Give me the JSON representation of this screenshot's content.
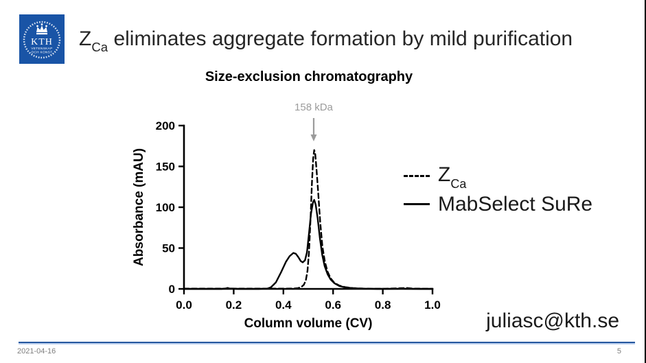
{
  "slide": {
    "title": {
      "z": "Z",
      "sub": "Ca",
      "rest": " eliminates aggregate formation by mild purification"
    },
    "email": "juliasc@kth.se",
    "footer_date": "2021-04-16",
    "footer_page": "5",
    "logo": {
      "text": "KTH",
      "subtext1": "VETENSKAP",
      "subtext2": "OCH KONST",
      "color": "#1954a6"
    }
  },
  "chart_data": {
    "type": "line",
    "title": "Size-exclusion chromatography",
    "xlabel": "Column volume (CV)",
    "ylabel": "Absorbance (mAU)",
    "xlim": [
      0.0,
      1.0
    ],
    "ylim": [
      0,
      200
    ],
    "xtick_values": [
      0.0,
      0.2,
      0.4,
      0.6,
      0.8,
      1.0
    ],
    "xtick_labels": [
      "0.0",
      "0.2",
      "0.4",
      "0.6",
      "0.8",
      "1.0"
    ],
    "ytick_values": [
      0,
      50,
      100,
      150,
      200
    ],
    "ytick_labels": [
      "0",
      "50",
      "100",
      "150",
      "200"
    ],
    "grid": false,
    "legend_position": "right",
    "annotation": {
      "text": "158 kDa",
      "x": 0.522,
      "arrow": true,
      "color": "#9b9b9b"
    },
    "legend": [
      {
        "label": "Z",
        "sub": "Ca",
        "style": "dashed"
      },
      {
        "label": "MabSelect SuRe",
        "sub": "",
        "style": "solid"
      }
    ],
    "series": [
      {
        "name": "Z_Ca",
        "style": "dashed",
        "color": "#000000",
        "points": [
          [
            0.0,
            0.3
          ],
          [
            0.1,
            0.3
          ],
          [
            0.2,
            0.3
          ],
          [
            0.3,
            0.3
          ],
          [
            0.4,
            0.3
          ],
          [
            0.44,
            0.5
          ],
          [
            0.46,
            1
          ],
          [
            0.473,
            2.5
          ],
          [
            0.482,
            5
          ],
          [
            0.49,
            10
          ],
          [
            0.497,
            22
          ],
          [
            0.503,
            45
          ],
          [
            0.509,
            85
          ],
          [
            0.515,
            130
          ],
          [
            0.52,
            160
          ],
          [
            0.524,
            170
          ],
          [
            0.528,
            166
          ],
          [
            0.533,
            148
          ],
          [
            0.54,
            118
          ],
          [
            0.548,
            82
          ],
          [
            0.557,
            52
          ],
          [
            0.567,
            33
          ],
          [
            0.578,
            21
          ],
          [
            0.59,
            13
          ],
          [
            0.605,
            7.5
          ],
          [
            0.625,
            4
          ],
          [
            0.65,
            2
          ],
          [
            0.68,
            1
          ],
          [
            0.72,
            0.4
          ],
          [
            0.8,
            0.2
          ],
          [
            0.87,
            0.8
          ],
          [
            0.895,
            1.2
          ],
          [
            0.92,
            0.4
          ],
          [
            1.0,
            0.2
          ]
        ]
      },
      {
        "name": "MabSelect SuRe",
        "style": "solid",
        "color": "#000000",
        "points": [
          [
            0.0,
            0
          ],
          [
            0.08,
            0
          ],
          [
            0.15,
            0
          ],
          [
            0.165,
            0.3
          ],
          [
            0.175,
            1.2
          ],
          [
            0.185,
            0.4
          ],
          [
            0.22,
            0
          ],
          [
            0.3,
            0
          ],
          [
            0.335,
            0.3
          ],
          [
            0.35,
            2
          ],
          [
            0.37,
            8
          ],
          [
            0.39,
            20
          ],
          [
            0.41,
            33
          ],
          [
            0.425,
            40
          ],
          [
            0.44,
            44
          ],
          [
            0.45,
            43
          ],
          [
            0.46,
            39
          ],
          [
            0.47,
            34
          ],
          [
            0.478,
            32.5
          ],
          [
            0.487,
            35
          ],
          [
            0.495,
            45
          ],
          [
            0.503,
            68
          ],
          [
            0.511,
            92
          ],
          [
            0.519,
            106
          ],
          [
            0.524,
            109
          ],
          [
            0.53,
            103
          ],
          [
            0.538,
            86
          ],
          [
            0.547,
            62
          ],
          [
            0.556,
            42
          ],
          [
            0.566,
            28
          ],
          [
            0.578,
            18
          ],
          [
            0.59,
            11.5
          ],
          [
            0.605,
            7
          ],
          [
            0.625,
            3.5
          ],
          [
            0.65,
            1.8
          ],
          [
            0.68,
            0.8
          ],
          [
            0.72,
            0.3
          ],
          [
            0.78,
            0
          ],
          [
            0.88,
            0.2
          ],
          [
            0.95,
            0
          ],
          [
            1.0,
            0
          ]
        ]
      }
    ]
  }
}
